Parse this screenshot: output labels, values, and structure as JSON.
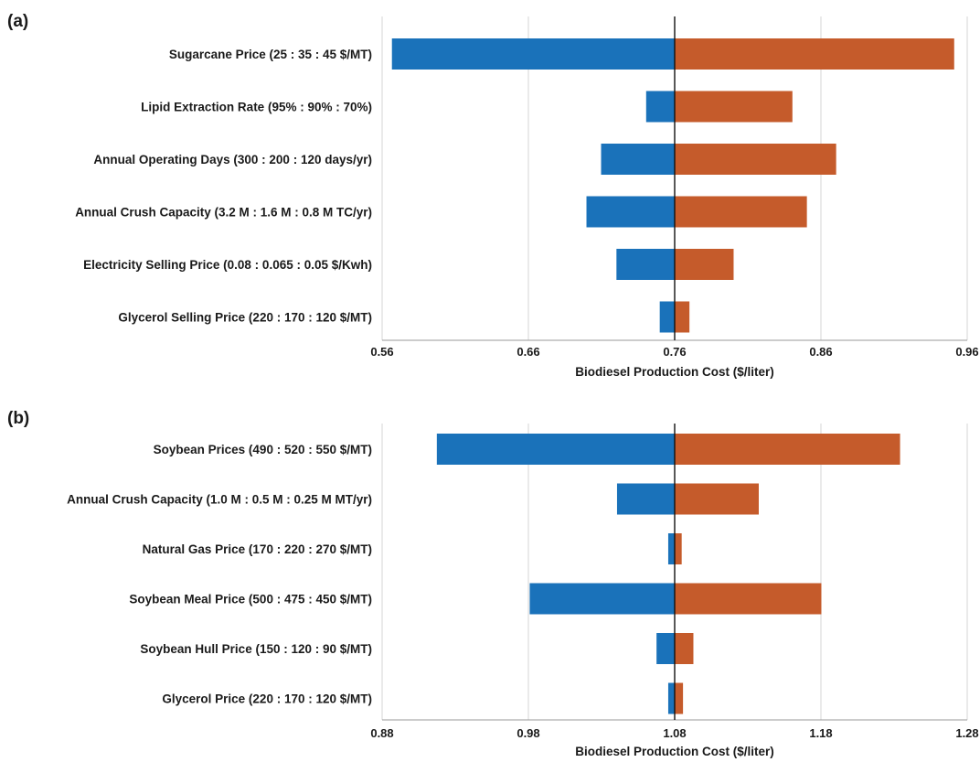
{
  "chart_data": [
    {
      "type": "bar",
      "panel_label": "(a)",
      "categories": [
        "Sugarcane Price (25 : 35 : 45 $/MT)",
        "Lipid Extraction Rate (95% : 90% : 70%)",
        "Annual Operating Days (300 : 200 : 120 days/yr)",
        "Annual Crush Capacity (3.2 M : 1.6 M : 0.8 M TC/yr)",
        "Electricity Selling  Price (0.08 : 0.065 : 0.05 $/Kwh)",
        "Glycerol Selling Price (220 : 170 : 120 $/MT)"
      ],
      "base": 0.76,
      "low": [
        0.5667,
        0.7405,
        0.7097,
        0.6997,
        0.7202,
        0.7498
      ],
      "high": [
        0.9511,
        0.8405,
        0.8704,
        0.8504,
        0.8003,
        0.7701
      ],
      "xlim": [
        0.56,
        0.96
      ],
      "xticks": [
        "0.56",
        "0.66",
        "0.76",
        "0.86",
        "0.96"
      ],
      "xtick_values": [
        0.56,
        0.66,
        0.76,
        0.86,
        0.96
      ],
      "xlabel": "Biodiesel Production Cost ($/liter)",
      "grid": true,
      "colors": {
        "low": "#1a72ba",
        "high": "#c55b2b"
      }
    },
    {
      "type": "bar",
      "panel_label": "(b)",
      "categories": [
        "Soybean Prices (490 : 520 : 550 $/MT)",
        "Annual Crush Capacity (1.0 M : 0.5 M : 0.25 M MT/yr)",
        "Natural Gas Price (170 : 220 : 270 $/MT)",
        "Soybean Meal Price (500 : 475 : 450 $/MT)",
        "Soybean Hull Price (150 : 120 : 90 $/MT)",
        "Glycerol Price (220 : 170 : 120 $/MT)"
      ],
      "base": 1.08,
      "low": [
        0.9174,
        1.0406,
        1.0756,
        0.9809,
        1.0676,
        1.0756
      ],
      "high": [
        1.2341,
        1.1375,
        1.0848,
        1.1803,
        1.0928,
        1.0857
      ],
      "xlim": [
        0.88,
        1.28
      ],
      "xticks": [
        "0.88",
        "0.98",
        "1.08",
        "1.18",
        "1.28"
      ],
      "xtick_values": [
        0.88,
        0.98,
        1.08,
        1.18,
        1.28
      ],
      "xlabel": "Biodiesel Production Cost ($/liter)",
      "grid": true,
      "colors": {
        "low": "#1a72ba",
        "high": "#c55b2b"
      }
    }
  ]
}
